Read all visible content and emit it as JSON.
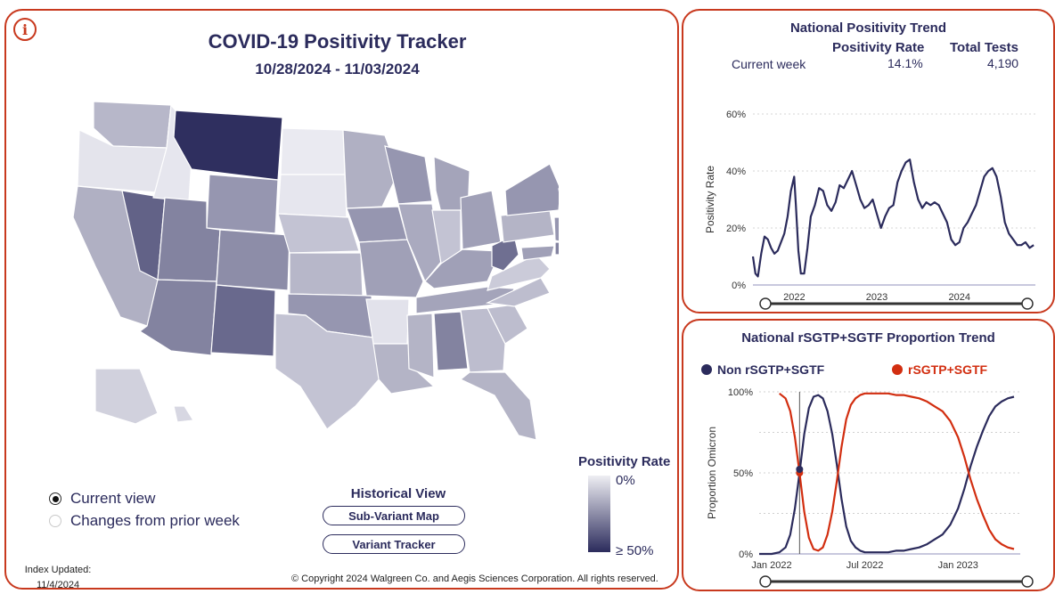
{
  "header": {
    "title": "COVID-19 Positivity Tracker",
    "date_range": "10/28/2024 - 11/03/2024"
  },
  "colors": {
    "accent_border": "#c8391e",
    "navy": "#2b2b5c",
    "red": "#d22e10",
    "gridline": "#cfcfcf"
  },
  "icons": {
    "info": "i"
  },
  "map": {
    "states": {
      "WA": 0.28,
      "OR": 0.05,
      "CA": 0.32,
      "NV": 0.72,
      "ID": 0.04,
      "MT": 0.98,
      "WY": 0.45,
      "UT": 0.55,
      "AZ": 0.55,
      "CO": 0.5,
      "NM": 0.68,
      "ND": 0.02,
      "SD": 0.04,
      "NE": 0.22,
      "KS": 0.28,
      "OK": 0.45,
      "TX": 0.22,
      "MN": 0.32,
      "IA": 0.45,
      "MO": 0.4,
      "AR": 0.06,
      "LA": 0.3,
      "WI": 0.45,
      "IL": 0.35,
      "MI": 0.38,
      "IN": 0.22,
      "OH": 0.4,
      "KY": 0.4,
      "TN": 0.38,
      "MS": 0.3,
      "AL": 0.55,
      "GA": 0.25,
      "FL": 0.3,
      "SC": 0.25,
      "NC": 0.25,
      "VA": 0.18,
      "WV": 0.65,
      "PA": 0.3,
      "NY": 0.45,
      "VT": 0.98,
      "NH": 0.6,
      "ME": 0.2,
      "MA": 0.35,
      "CT": 0.6,
      "NJ": 0.45,
      "MD": 0.4,
      "DE": 0.55,
      "AK": 0.15,
      "HI": 0.12,
      "PR": 0.03
    }
  },
  "view_toggle": {
    "current_view": "Current view",
    "changes_prior": "Changes from prior week"
  },
  "historical": {
    "title": "Historical View",
    "sub_variant_map": "Sub-Variant Map",
    "variant_tracker": "Variant Tracker"
  },
  "legend": {
    "title": "Positivity Rate",
    "low": "0%",
    "high": "≥ 50%"
  },
  "footer": {
    "index_label": "Index Updated:",
    "index_date": "11/4/2024",
    "copyright": "© Copyright 2024 Walgreen Co. and Aegis Sciences Corporation. All rights reserved."
  },
  "national_trend": {
    "title": "National Positivity Trend",
    "col_rate": "Positivity Rate",
    "col_tests": "Total Tests",
    "row_label": "Current week",
    "rate_value": "14.1%",
    "tests_value": "4,190"
  },
  "rsgtp": {
    "title": "National rSGTP+SGTF Proportion Trend",
    "legend_non": "Non rSGTP+SGTF",
    "legend_yes": "rSGTP+SGTF"
  },
  "chart_data": [
    {
      "type": "line",
      "ylabel": "Positivity Rate",
      "ylim": [
        0,
        60
      ],
      "yticks": [
        "0%",
        "20%",
        "40%",
        "60%"
      ],
      "xticks": [
        {
          "label": "2022",
          "x": 2022.0
        },
        {
          "label": "2023",
          "x": 2023.0
        },
        {
          "label": "2024",
          "x": 2024.0
        }
      ],
      "xlim": [
        2021.5,
        2024.92
      ],
      "grid": true,
      "series": [
        {
          "x": [
            2021.5,
            2021.53,
            2021.56,
            2021.6,
            2021.64,
            2021.68,
            2021.72,
            2021.76,
            2021.8,
            2021.84,
            2021.88,
            2021.92,
            2021.96,
            2022.0,
            2022.02,
            2022.05,
            2022.08,
            2022.12,
            2022.16,
            2022.2,
            2022.25,
            2022.3,
            2022.35,
            2022.4,
            2022.45,
            2022.5,
            2022.55,
            2022.6,
            2022.65,
            2022.7,
            2022.75,
            2022.8,
            2022.85,
            2022.9,
            2022.95,
            2023.0,
            2023.05,
            2023.1,
            2023.15,
            2023.2,
            2023.25,
            2023.3,
            2023.35,
            2023.4,
            2023.45,
            2023.5,
            2023.55,
            2023.6,
            2023.65,
            2023.7,
            2023.75,
            2023.8,
            2023.85,
            2023.9,
            2023.95,
            2024.0,
            2024.05,
            2024.1,
            2024.15,
            2024.2,
            2024.25,
            2024.3,
            2024.35,
            2024.4,
            2024.45,
            2024.5,
            2024.55,
            2024.6,
            2024.65,
            2024.7,
            2024.75,
            2024.8,
            2024.85,
            2024.9
          ],
          "values": [
            10,
            4,
            3,
            11,
            17,
            16,
            13,
            11,
            12,
            15,
            18,
            24,
            33,
            38,
            28,
            12,
            4,
            4,
            13,
            24,
            28,
            34,
            33,
            28,
            26,
            29,
            35,
            34,
            37,
            40,
            35,
            30,
            27,
            28,
            30,
            25,
            20,
            24,
            27,
            28,
            36,
            40,
            43,
            44,
            36,
            30,
            27,
            29,
            28,
            29,
            28,
            25,
            22,
            16,
            14,
            15,
            20,
            22,
            25,
            28,
            33,
            38,
            40,
            41,
            38,
            31,
            22,
            18,
            16,
            14,
            14,
            15,
            13,
            14
          ]
        }
      ]
    },
    {
      "type": "line",
      "ylabel": "Proportion Omicron",
      "ylim": [
        0,
        100
      ],
      "yticks": [
        "0%",
        "50%",
        "100%"
      ],
      "xticks": [
        {
          "label": "Jan 2022",
          "x": 0.0
        },
        {
          "label": "Jul 2022",
          "x": 6.0
        },
        {
          "label": "Jan 2023",
          "x": 12.0
        }
      ],
      "xlim": [
        -0.8,
        16.0
      ],
      "grid": true,
      "marker_x": 1.8,
      "series": [
        {
          "name": "Non rSGTP+SGTF",
          "color": "#2b2b5c",
          "x": [
            -0.8,
            0.0,
            0.5,
            0.9,
            1.2,
            1.5,
            1.8,
            2.1,
            2.4,
            2.7,
            3.0,
            3.3,
            3.6,
            3.9,
            4.2,
            4.5,
            4.8,
            5.1,
            5.4,
            5.7,
            6.0,
            6.5,
            7.0,
            7.5,
            8.0,
            8.5,
            9.0,
            9.5,
            10.0,
            10.5,
            11.0,
            11.5,
            12.0,
            12.4,
            12.8,
            13.2,
            13.6,
            14.0,
            14.4,
            14.8,
            15.2,
            15.6
          ],
          "values": [
            0,
            0,
            1,
            4,
            12,
            28,
            50,
            74,
            90,
            97,
            98,
            96,
            88,
            74,
            55,
            34,
            17,
            8,
            4,
            2,
            1,
            1,
            1,
            1,
            2,
            2,
            3,
            4,
            6,
            9,
            12,
            18,
            28,
            40,
            54,
            66,
            76,
            85,
            91,
            94,
            96,
            97
          ]
        },
        {
          "name": "rSGTP+SGTF",
          "color": "#d22e10",
          "x": [
            0.5,
            0.9,
            1.2,
            1.5,
            1.8,
            2.1,
            2.4,
            2.7,
            3.0,
            3.3,
            3.6,
            3.9,
            4.2,
            4.5,
            4.8,
            5.1,
            5.4,
            5.7,
            6.0,
            6.5,
            7.0,
            7.5,
            8.0,
            8.5,
            9.0,
            9.5,
            10.0,
            10.5,
            11.0,
            11.5,
            12.0,
            12.4,
            12.8,
            13.2,
            13.6,
            14.0,
            14.4,
            14.8,
            15.2,
            15.6
          ],
          "values": [
            99,
            96,
            88,
            72,
            50,
            26,
            10,
            3,
            2,
            4,
            12,
            26,
            45,
            66,
            83,
            92,
            96,
            98,
            99,
            99,
            99,
            99,
            98,
            98,
            97,
            96,
            94,
            91,
            88,
            82,
            72,
            60,
            46,
            34,
            24,
            15,
            9,
            6,
            4,
            3
          ]
        }
      ]
    }
  ]
}
